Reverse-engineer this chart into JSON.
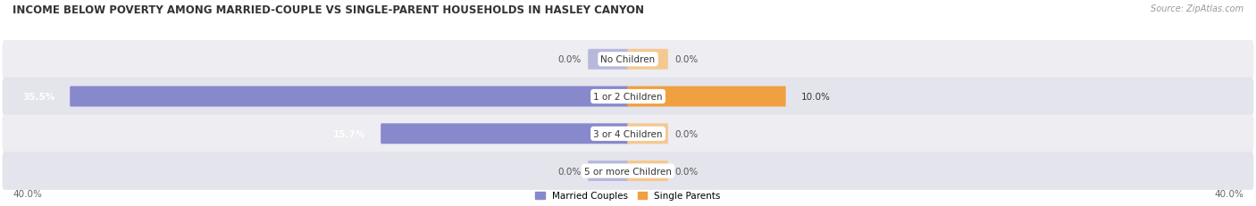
{
  "title": "INCOME BELOW POVERTY AMONG MARRIED-COUPLE VS SINGLE-PARENT HOUSEHOLDS IN HASLEY CANYON",
  "source": "Source: ZipAtlas.com",
  "categories": [
    "No Children",
    "1 or 2 Children",
    "3 or 4 Children",
    "5 or more Children"
  ],
  "married_values": [
    0.0,
    35.5,
    15.7,
    0.0
  ],
  "single_values": [
    0.0,
    10.0,
    0.0,
    0.0
  ],
  "x_max": 40.0,
  "married_color": "#8888cc",
  "single_color": "#f0a040",
  "married_color_pale": "#b8b8dd",
  "single_color_pale": "#f5c890",
  "row_bg_color": "#ededf2",
  "row_bg_alt": "#e4e4ec",
  "title_color": "#333333",
  "title_fontsize": 8.5,
  "cat_fontsize": 7.5,
  "value_fontsize": 7.5,
  "legend_fontsize": 7.5,
  "source_fontsize": 7.0
}
